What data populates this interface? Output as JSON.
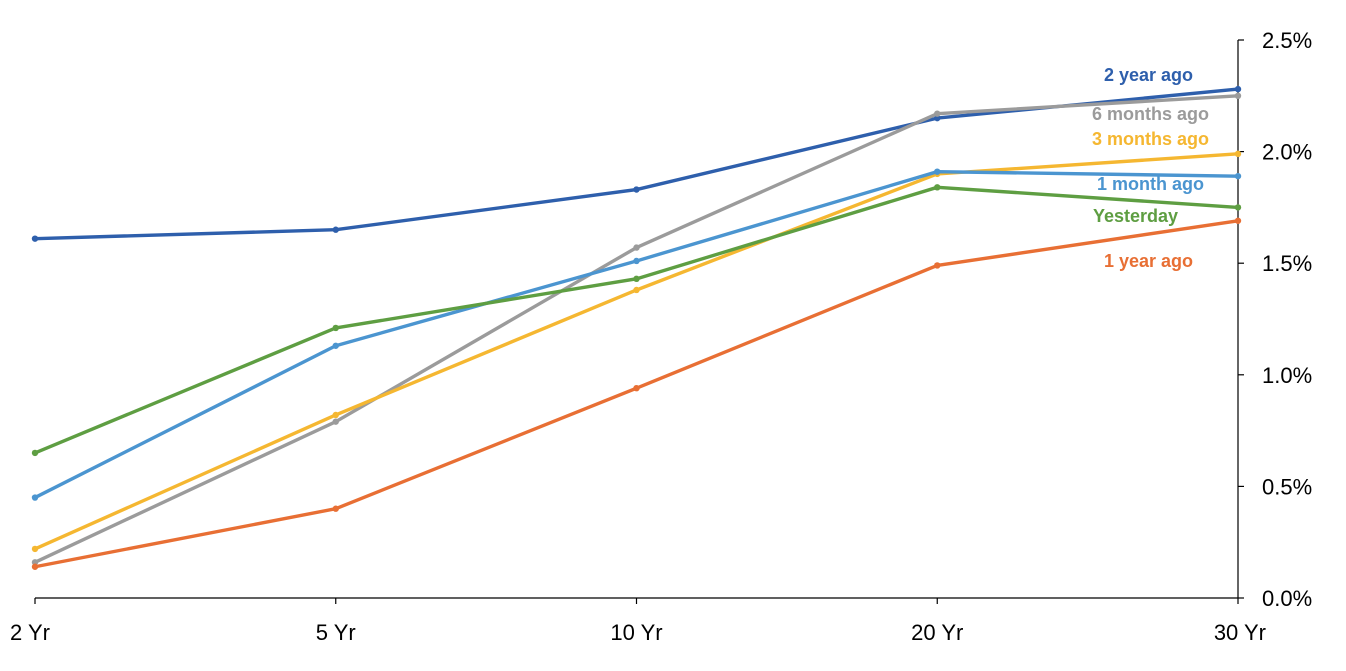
{
  "chart_data": {
    "type": "line",
    "title": "",
    "xlabel": "",
    "ylabel": "",
    "categories": [
      "2 Yr",
      "5 Yr",
      "10 Yr",
      "20 Yr",
      "30 Yr"
    ],
    "ylim": [
      0,
      2.5
    ],
    "yticks": [
      "0.0%",
      "0.5%",
      "1.0%",
      "1.5%",
      "2.0%",
      "2.5%"
    ],
    "y_axis_side": "right",
    "grid": false,
    "legend": "inline-right",
    "series": [
      {
        "name": "2 year ago",
        "color": "#2e5fac",
        "values": [
          1.61,
          1.65,
          1.83,
          2.15,
          2.28
        ]
      },
      {
        "name": "6 months ago",
        "color": "#9b9b9b",
        "values": [
          0.16,
          0.79,
          1.57,
          2.17,
          2.25
        ]
      },
      {
        "name": "3 months ago",
        "color": "#f5b731",
        "values": [
          0.22,
          0.82,
          1.38,
          1.9,
          1.99
        ]
      },
      {
        "name": "1 month ago",
        "color": "#4b95d0",
        "values": [
          0.45,
          1.13,
          1.51,
          1.91,
          1.89
        ]
      },
      {
        "name": "Yesterday",
        "color": "#5e9e42",
        "values": [
          0.65,
          1.21,
          1.43,
          1.84,
          1.75
        ]
      },
      {
        "name": "1 year ago",
        "color": "#e86f34",
        "values": [
          0.14,
          0.4,
          0.94,
          1.49,
          1.69
        ]
      }
    ]
  }
}
